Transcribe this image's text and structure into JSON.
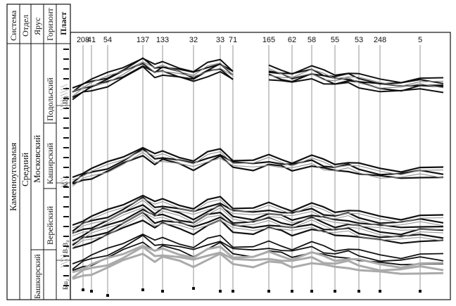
{
  "header": {
    "system": "Система",
    "series": "Отдел",
    "stage": "Ярус",
    "horizon": "Горизонт",
    "layer": "Пласт"
  },
  "strat": {
    "system": "Каменноугольная",
    "series": "Средний",
    "stage_moscow": "Московский",
    "stage_bashkir": "Башкирский",
    "horizon_podolsk": "Подольский",
    "horizon_kashira": "Каширский",
    "horizon_verei": "Верейский",
    "layer_pd": "Пд",
    "layer_k": "К",
    "layer_v": "В₃В₄",
    "layer_b": "Бш₂"
  },
  "wells": [
    "208",
    "41",
    "54",
    "137",
    "133",
    "32",
    "33",
    "71",
    "165",
    "62",
    "58",
    "55",
    "53",
    "248",
    "5"
  ]
}
